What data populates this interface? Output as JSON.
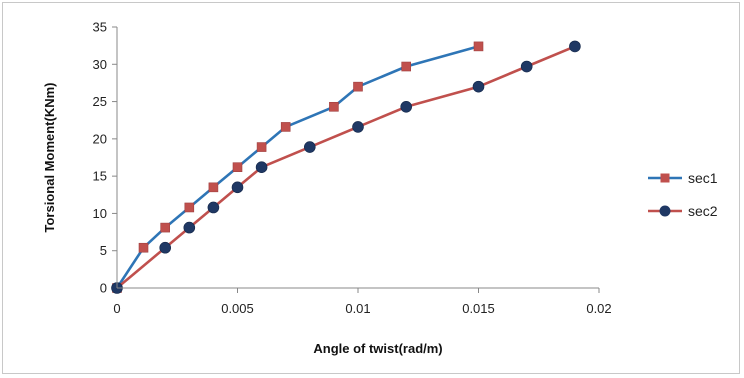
{
  "chart_data": {
    "type": "line",
    "title": "",
    "xlabel": "Angle of twist(rad/m)",
    "ylabel": "Torsional Moment(KNm)",
    "xlim": [
      0,
      0.02
    ],
    "ylim": [
      0,
      35
    ],
    "x_ticks": [
      "0",
      "0.005",
      "0.01",
      "0.015",
      "0.02"
    ],
    "y_ticks": [
      "0",
      "5",
      "10",
      "15",
      "20",
      "25",
      "30",
      "35"
    ],
    "x_tick_values": [
      0,
      0.005,
      0.01,
      0.015,
      0.02
    ],
    "y_tick_values": [
      0,
      5,
      10,
      15,
      20,
      25,
      30,
      35
    ],
    "grid": false,
    "legend_position": "right",
    "series": [
      {
        "name": "sec1",
        "line_color": "#2e75b6",
        "marker_color": "#c0504d",
        "marker": "square",
        "points": [
          [
            0,
            0
          ],
          [
            0.0011,
            5.4
          ],
          [
            0.002,
            8.1
          ],
          [
            0.003,
            10.8
          ],
          [
            0.004,
            13.5
          ],
          [
            0.005,
            16.2
          ],
          [
            0.006,
            18.9
          ],
          [
            0.007,
            21.6
          ],
          [
            0.009,
            24.3
          ],
          [
            0.01,
            27.0
          ],
          [
            0.012,
            29.7
          ],
          [
            0.015,
            32.4
          ]
        ]
      },
      {
        "name": "sec2",
        "line_color": "#c0504d",
        "marker_color": "#1f3864",
        "marker": "circle",
        "points": [
          [
            0,
            0
          ],
          [
            0.002,
            5.4
          ],
          [
            0.003,
            8.1
          ],
          [
            0.004,
            10.8
          ],
          [
            0.005,
            13.5
          ],
          [
            0.006,
            16.2
          ],
          [
            0.008,
            18.9
          ],
          [
            0.01,
            21.6
          ],
          [
            0.012,
            24.3
          ],
          [
            0.015,
            27.0
          ],
          [
            0.017,
            29.7
          ],
          [
            0.019,
            32.4
          ]
        ]
      }
    ]
  }
}
